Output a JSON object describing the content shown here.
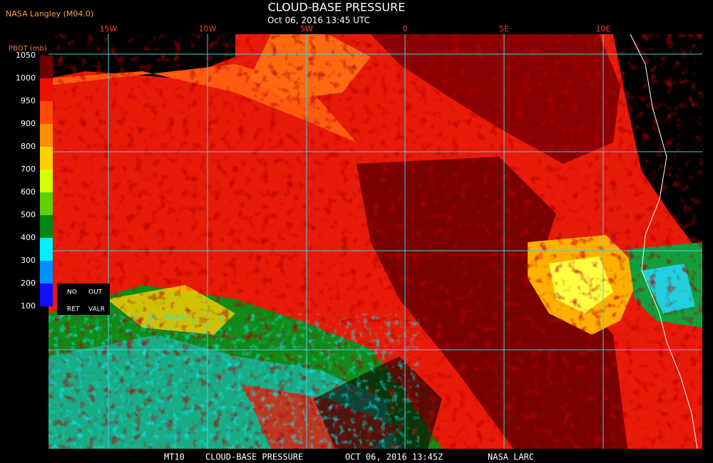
{
  "header": {
    "credit": "NASA Langley (M04.0)",
    "title": "CLOUD-BASE PRESSURE",
    "subtitle": "Oct 06, 2016 13:45 UTC"
  },
  "longitude_labels": [
    "15W",
    "10W",
    "5W",
    "0",
    "5E",
    "10E"
  ],
  "colorbar": {
    "label": "PBOT (mb)",
    "ticks": [
      1050,
      1000,
      950,
      900,
      800,
      700,
      600,
      500,
      400,
      300,
      200,
      100
    ]
  },
  "legend_box": [
    "NO",
    "OUT",
    "RET",
    "VALR"
  ],
  "footer": {
    "product": "MT10",
    "title": "CLOUD-BASE PRESSURE",
    "date": "OCT 06, 2016 13:45Z",
    "source": "NASA LARC"
  }
}
